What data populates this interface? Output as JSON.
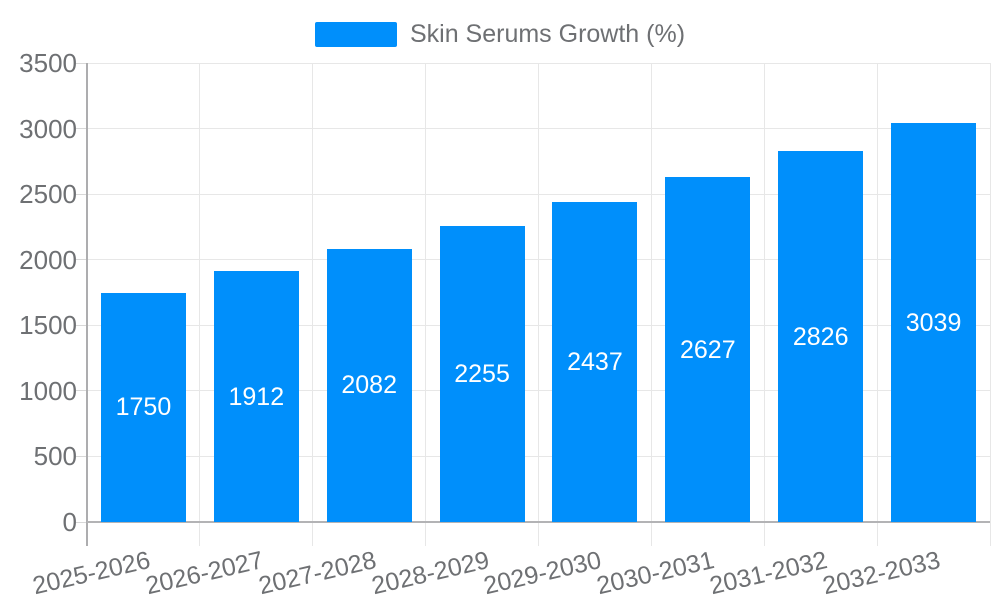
{
  "legend": {
    "label": "Skin Serums Growth (%)"
  },
  "chart_data": {
    "type": "bar",
    "title": "",
    "xlabel": "",
    "ylabel": "",
    "categories": [
      "2025-2026",
      "2026-2027",
      "2027-2028",
      "2028-2029",
      "2029-2030",
      "2030-2031",
      "2031-2032",
      "2032-2033"
    ],
    "series": [
      {
        "name": "Skin Serums Growth (%)",
        "values": [
          1750,
          1912,
          2082,
          2255,
          2437,
          2627,
          2826,
          3039
        ]
      }
    ],
    "yticks": [
      0,
      500,
      1000,
      1500,
      2000,
      2500,
      3000,
      3500
    ],
    "ylim": [
      0,
      3500
    ],
    "grid": true,
    "legend_position": "top",
    "colors": {
      "bar": "#008FFB",
      "axis_label_text": "#6e7073",
      "data_label_text": "#ffffff",
      "grid_line": "#e7e7e7",
      "axis_line": "#b3b3b5",
      "background": "#ffffff"
    }
  }
}
